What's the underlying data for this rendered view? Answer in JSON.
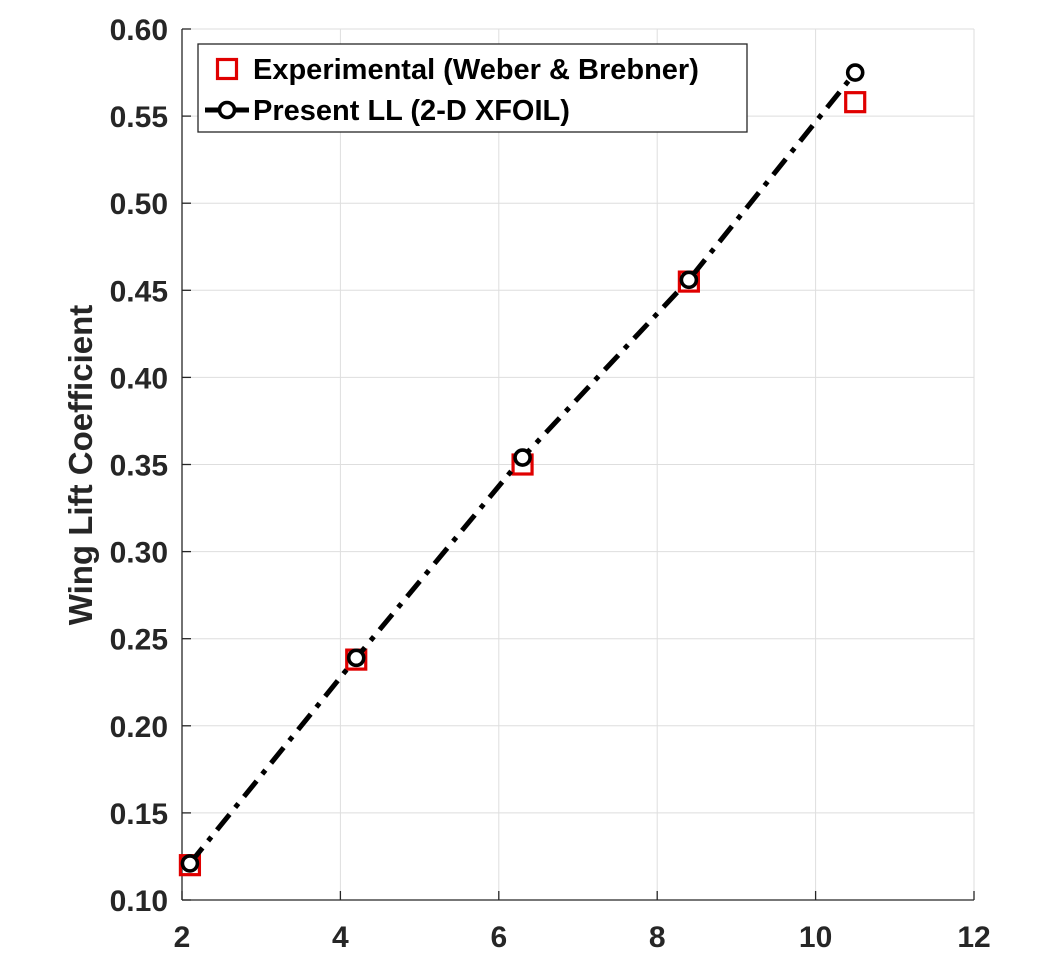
{
  "chart_data": {
    "type": "line",
    "title": "",
    "xlabel": "",
    "ylabel": "Wing Lift Coefficient",
    "xlim": [
      2,
      12
    ],
    "ylim": [
      0.1,
      0.6
    ],
    "xticks": [
      "2",
      "4",
      "6",
      "8",
      "10",
      "12"
    ],
    "yticks": [
      "0.10",
      "0.15",
      "0.20",
      "0.25",
      "0.30",
      "0.35",
      "0.40",
      "0.45",
      "0.50",
      "0.55",
      "0.60"
    ],
    "grid": true,
    "legend_position": "top-left",
    "series": [
      {
        "name": "Experimental (Weber & Brebner)",
        "style": "marker-square",
        "color": "#e00000",
        "x": [
          2.1,
          4.2,
          6.3,
          8.4,
          10.5
        ],
        "y": [
          0.12,
          0.238,
          0.35,
          0.455,
          0.558
        ]
      },
      {
        "name": "Present LL (2-D XFOIL)",
        "style": "dashdot-circle",
        "color": "#000000",
        "x": [
          2.1,
          4.2,
          6.3,
          8.4,
          10.5
        ],
        "y": [
          0.121,
          0.239,
          0.354,
          0.456,
          0.575
        ]
      }
    ]
  }
}
